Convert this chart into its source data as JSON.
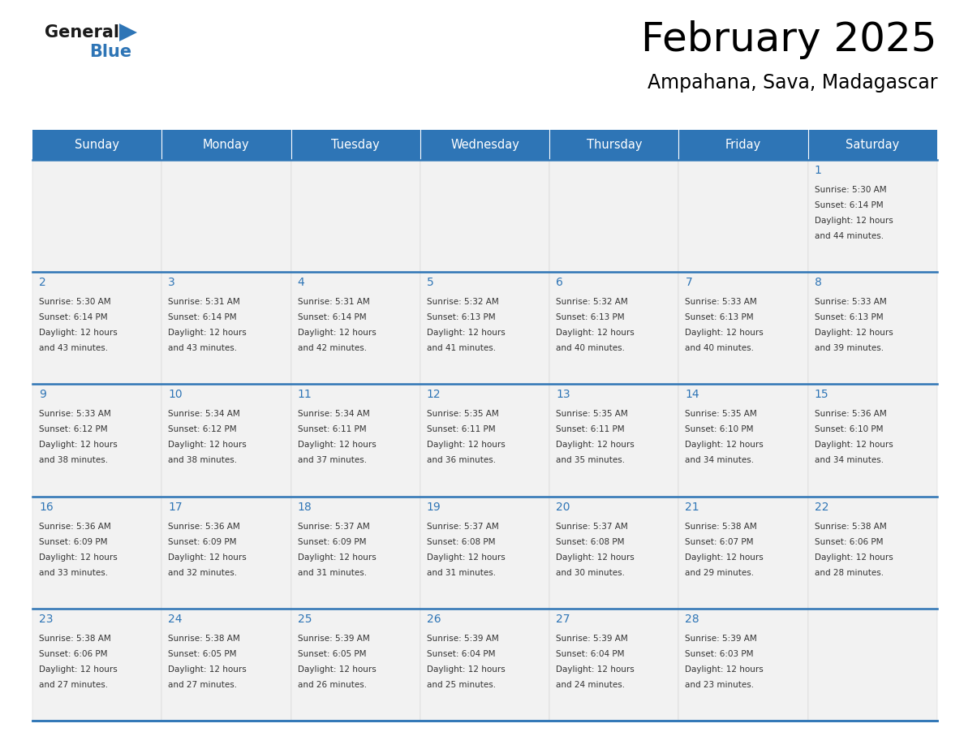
{
  "title": "February 2025",
  "subtitle": "Ampahana, Sava, Madagascar",
  "header_color": "#2e75b6",
  "header_text_color": "#ffffff",
  "cell_bg_color": "#f2f2f2",
  "border_color": "#2e75b6",
  "title_color": "#000000",
  "subtitle_color": "#000000",
  "day_number_color": "#2e75b6",
  "cell_text_color": "#333333",
  "days_of_week": [
    "Sunday",
    "Monday",
    "Tuesday",
    "Wednesday",
    "Thursday",
    "Friday",
    "Saturday"
  ],
  "calendar_data": [
    [
      null,
      null,
      null,
      null,
      null,
      null,
      {
        "day": 1,
        "sunrise": "5:30 AM",
        "sunset": "6:14 PM",
        "daylight": "12 hours and 44 minutes"
      }
    ],
    [
      {
        "day": 2,
        "sunrise": "5:30 AM",
        "sunset": "6:14 PM",
        "daylight": "12 hours and 43 minutes"
      },
      {
        "day": 3,
        "sunrise": "5:31 AM",
        "sunset": "6:14 PM",
        "daylight": "12 hours and 43 minutes"
      },
      {
        "day": 4,
        "sunrise": "5:31 AM",
        "sunset": "6:14 PM",
        "daylight": "12 hours and 42 minutes"
      },
      {
        "day": 5,
        "sunrise": "5:32 AM",
        "sunset": "6:13 PM",
        "daylight": "12 hours and 41 minutes"
      },
      {
        "day": 6,
        "sunrise": "5:32 AM",
        "sunset": "6:13 PM",
        "daylight": "12 hours and 40 minutes"
      },
      {
        "day": 7,
        "sunrise": "5:33 AM",
        "sunset": "6:13 PM",
        "daylight": "12 hours and 40 minutes"
      },
      {
        "day": 8,
        "sunrise": "5:33 AM",
        "sunset": "6:13 PM",
        "daylight": "12 hours and 39 minutes"
      }
    ],
    [
      {
        "day": 9,
        "sunrise": "5:33 AM",
        "sunset": "6:12 PM",
        "daylight": "12 hours and 38 minutes"
      },
      {
        "day": 10,
        "sunrise": "5:34 AM",
        "sunset": "6:12 PM",
        "daylight": "12 hours and 38 minutes"
      },
      {
        "day": 11,
        "sunrise": "5:34 AM",
        "sunset": "6:11 PM",
        "daylight": "12 hours and 37 minutes"
      },
      {
        "day": 12,
        "sunrise": "5:35 AM",
        "sunset": "6:11 PM",
        "daylight": "12 hours and 36 minutes"
      },
      {
        "day": 13,
        "sunrise": "5:35 AM",
        "sunset": "6:11 PM",
        "daylight": "12 hours and 35 minutes"
      },
      {
        "day": 14,
        "sunrise": "5:35 AM",
        "sunset": "6:10 PM",
        "daylight": "12 hours and 34 minutes"
      },
      {
        "day": 15,
        "sunrise": "5:36 AM",
        "sunset": "6:10 PM",
        "daylight": "12 hours and 34 minutes"
      }
    ],
    [
      {
        "day": 16,
        "sunrise": "5:36 AM",
        "sunset": "6:09 PM",
        "daylight": "12 hours and 33 minutes"
      },
      {
        "day": 17,
        "sunrise": "5:36 AM",
        "sunset": "6:09 PM",
        "daylight": "12 hours and 32 minutes"
      },
      {
        "day": 18,
        "sunrise": "5:37 AM",
        "sunset": "6:09 PM",
        "daylight": "12 hours and 31 minutes"
      },
      {
        "day": 19,
        "sunrise": "5:37 AM",
        "sunset": "6:08 PM",
        "daylight": "12 hours and 31 minutes"
      },
      {
        "day": 20,
        "sunrise": "5:37 AM",
        "sunset": "6:08 PM",
        "daylight": "12 hours and 30 minutes"
      },
      {
        "day": 21,
        "sunrise": "5:38 AM",
        "sunset": "6:07 PM",
        "daylight": "12 hours and 29 minutes"
      },
      {
        "day": 22,
        "sunrise": "5:38 AM",
        "sunset": "6:06 PM",
        "daylight": "12 hours and 28 minutes"
      }
    ],
    [
      {
        "day": 23,
        "sunrise": "5:38 AM",
        "sunset": "6:06 PM",
        "daylight": "12 hours and 27 minutes"
      },
      {
        "day": 24,
        "sunrise": "5:38 AM",
        "sunset": "6:05 PM",
        "daylight": "12 hours and 27 minutes"
      },
      {
        "day": 25,
        "sunrise": "5:39 AM",
        "sunset": "6:05 PM",
        "daylight": "12 hours and 26 minutes"
      },
      {
        "day": 26,
        "sunrise": "5:39 AM",
        "sunset": "6:04 PM",
        "daylight": "12 hours and 25 minutes"
      },
      {
        "day": 27,
        "sunrise": "5:39 AM",
        "sunset": "6:04 PM",
        "daylight": "12 hours and 24 minutes"
      },
      {
        "day": 28,
        "sunrise": "5:39 AM",
        "sunset": "6:03 PM",
        "daylight": "12 hours and 23 minutes"
      },
      null
    ]
  ],
  "logo_text_general": "General",
  "logo_text_blue": "Blue",
  "logo_color_general": "#1a1a1a",
  "logo_color_blue": "#2e75b6",
  "logo_triangle_color": "#2e75b6",
  "fig_width": 11.88,
  "fig_height": 9.18,
  "dpi": 100
}
